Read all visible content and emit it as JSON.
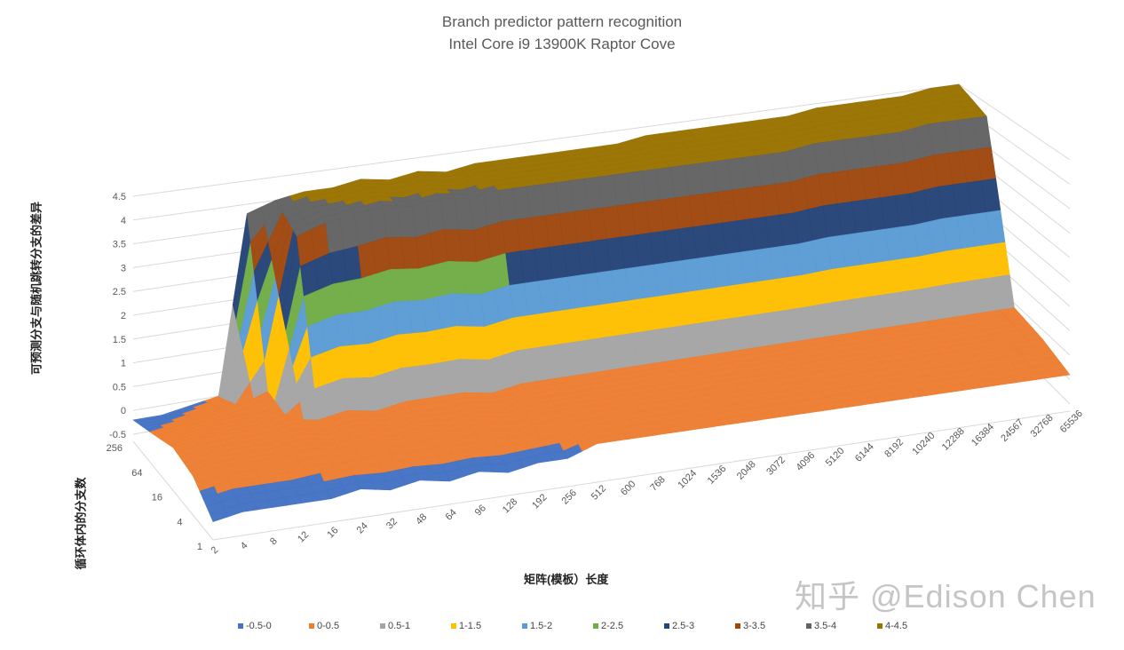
{
  "chart_data": {
    "type": "surface",
    "title": "Branch predictor pattern recognition",
    "subtitle": "Intel Core i9 13900K Raptor Cove",
    "xlabel": "矩阵(模板）长度",
    "ylabel": "可预测分支与随机跳转分支的差异",
    "depth_label": "循环体内的分支数",
    "categories": [
      "2",
      "4",
      "8",
      "12",
      "16",
      "24",
      "32",
      "48",
      "64",
      "96",
      "128",
      "192",
      "256",
      "512",
      "600",
      "768",
      "1024",
      "1536",
      "2048",
      "3072",
      "4096",
      "5120",
      "6144",
      "8192",
      "10240",
      "12288",
      "16384",
      "24567",
      "32768",
      "65536"
    ],
    "series_labels": [
      "1",
      "4",
      "16",
      "64",
      "256"
    ],
    "zlim": [
      -0.5,
      4.5
    ],
    "z_ticks": [
      "-0.5",
      "0",
      "0.5",
      "1",
      "1.5",
      "2",
      "2.5",
      "3",
      "3.5",
      "4",
      "4.5"
    ],
    "series": [
      {
        "name": "1",
        "values": [
          -0.3,
          -0.2,
          -0.2,
          -0.2,
          -0.2,
          -0.1,
          -0.2,
          -0.1,
          -0.2,
          -0.1,
          -0.2,
          -0.1,
          -0.1,
          0.1,
          0.1,
          0.1,
          0.1,
          0.1,
          0.1,
          0.1,
          0.1,
          0.1,
          0.1,
          0.1,
          0.1,
          0.1,
          0.1,
          0.1,
          0.1,
          0.1
        ]
      },
      {
        "name": "4",
        "values": [
          0.1,
          0.2,
          0.2,
          0.2,
          0.3,
          0.2,
          0.3,
          0.2,
          0.3,
          0.2,
          0.3,
          0.2,
          0.3,
          0.3,
          0.3,
          0.3,
          0.3,
          0.3,
          0.3,
          0.3,
          0.3,
          0.3,
          0.3,
          0.3,
          0.3,
          0.3,
          0.3,
          0.3,
          0.3,
          0.3
        ]
      },
      {
        "name": "16",
        "values": [
          0.2,
          0.3,
          0.3,
          0.3,
          0.4,
          0.3,
          0.4,
          0.3,
          0.4,
          0.4,
          0.4,
          0.3,
          0.4,
          0.4,
          0.4,
          0.4,
          0.4,
          0.4,
          0.4,
          0.4,
          0.4,
          0.4,
          0.4,
          0.4,
          0.4,
          0.4,
          0.4,
          0.4,
          0.4,
          0.4
        ]
      },
      {
        "name": "64",
        "values": [
          0.0,
          0.1,
          0.2,
          0.3,
          0.5,
          3.6,
          3.8,
          3.9,
          4.0,
          3.9,
          4.0,
          3.9,
          4.0,
          4.0,
          4.0,
          4.0,
          4.0,
          4.0,
          4.0,
          4.0,
          4.0,
          4.0,
          4.0,
          4.1,
          4.1,
          4.1,
          4.1,
          4.2,
          4.2,
          4.2
        ]
      },
      {
        "name": "256",
        "values": [
          -0.2,
          -0.2,
          -0.1,
          0.0,
          3.8,
          4.0,
          4.1,
          4.1,
          4.2,
          4.1,
          4.2,
          4.1,
          4.2,
          4.2,
          4.2,
          4.2,
          4.2,
          4.2,
          4.3,
          4.3,
          4.3,
          4.3,
          4.3,
          4.3,
          4.4,
          4.4,
          4.4,
          4.4,
          4.5,
          4.5
        ]
      }
    ],
    "legend": [
      {
        "label": "-0.5-0",
        "color": "#4472C4"
      },
      {
        "label": "0-0.5",
        "color": "#ED7D31"
      },
      {
        "label": "0.5-1",
        "color": "#A5A5A5"
      },
      {
        "label": "1-1.5",
        "color": "#FFC000"
      },
      {
        "label": "1.5-2",
        "color": "#5B9BD5"
      },
      {
        "label": "2-2.5",
        "color": "#70AD47"
      },
      {
        "label": "2.5-3",
        "color": "#264478"
      },
      {
        "label": "3-3.5",
        "color": "#9E480E"
      },
      {
        "label": "3.5-4",
        "color": "#636363"
      },
      {
        "label": "4-4.5",
        "color": "#997300"
      }
    ],
    "legend_position": "bottom"
  },
  "watermark": "知乎 @Edison Chen"
}
